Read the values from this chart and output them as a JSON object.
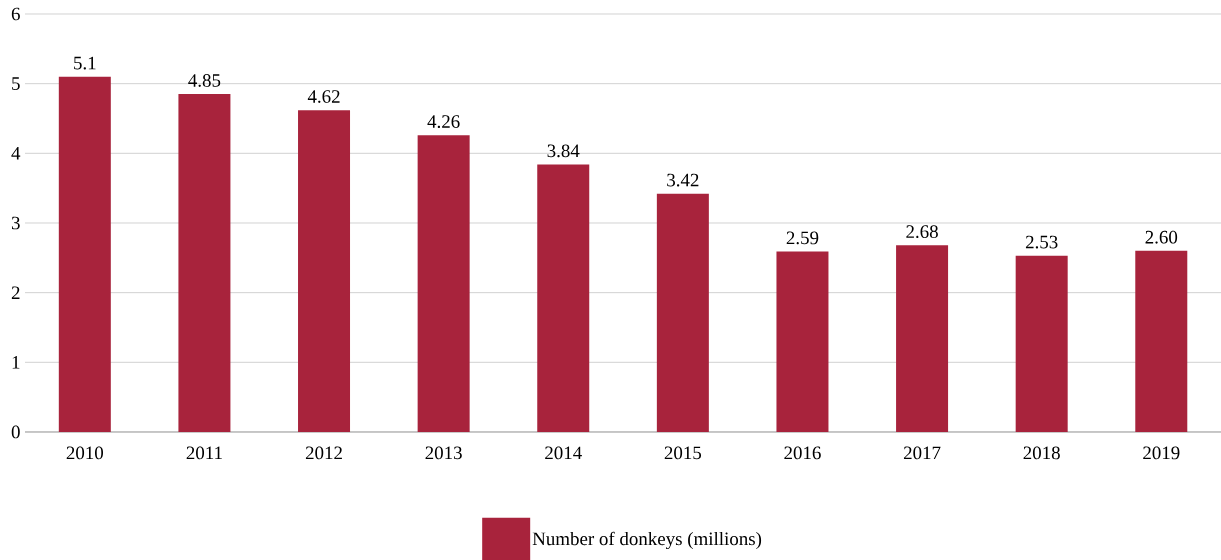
{
  "chart_data": {
    "type": "bar",
    "categories": [
      "2010",
      "2011",
      "2012",
      "2013",
      "2014",
      "2015",
      "2016",
      "2017",
      "2018",
      "2019"
    ],
    "series": [
      {
        "name": "Number of donkeys (millions)",
        "color": "#a8233c",
        "values": [
          5.1,
          4.85,
          4.62,
          4.26,
          3.84,
          3.42,
          2.59,
          2.68,
          2.53,
          2.6
        ],
        "value_labels": [
          "5.1",
          "4.85",
          "4.62",
          "4.26",
          "3.84",
          "3.42",
          "2.59",
          "2.68",
          "2.53",
          "2.60"
        ]
      }
    ],
    "ylim": [
      0,
      6
    ],
    "yticks": [
      0,
      1,
      2,
      3,
      4,
      5,
      6
    ],
    "grid": "y",
    "legend": "bottom"
  }
}
